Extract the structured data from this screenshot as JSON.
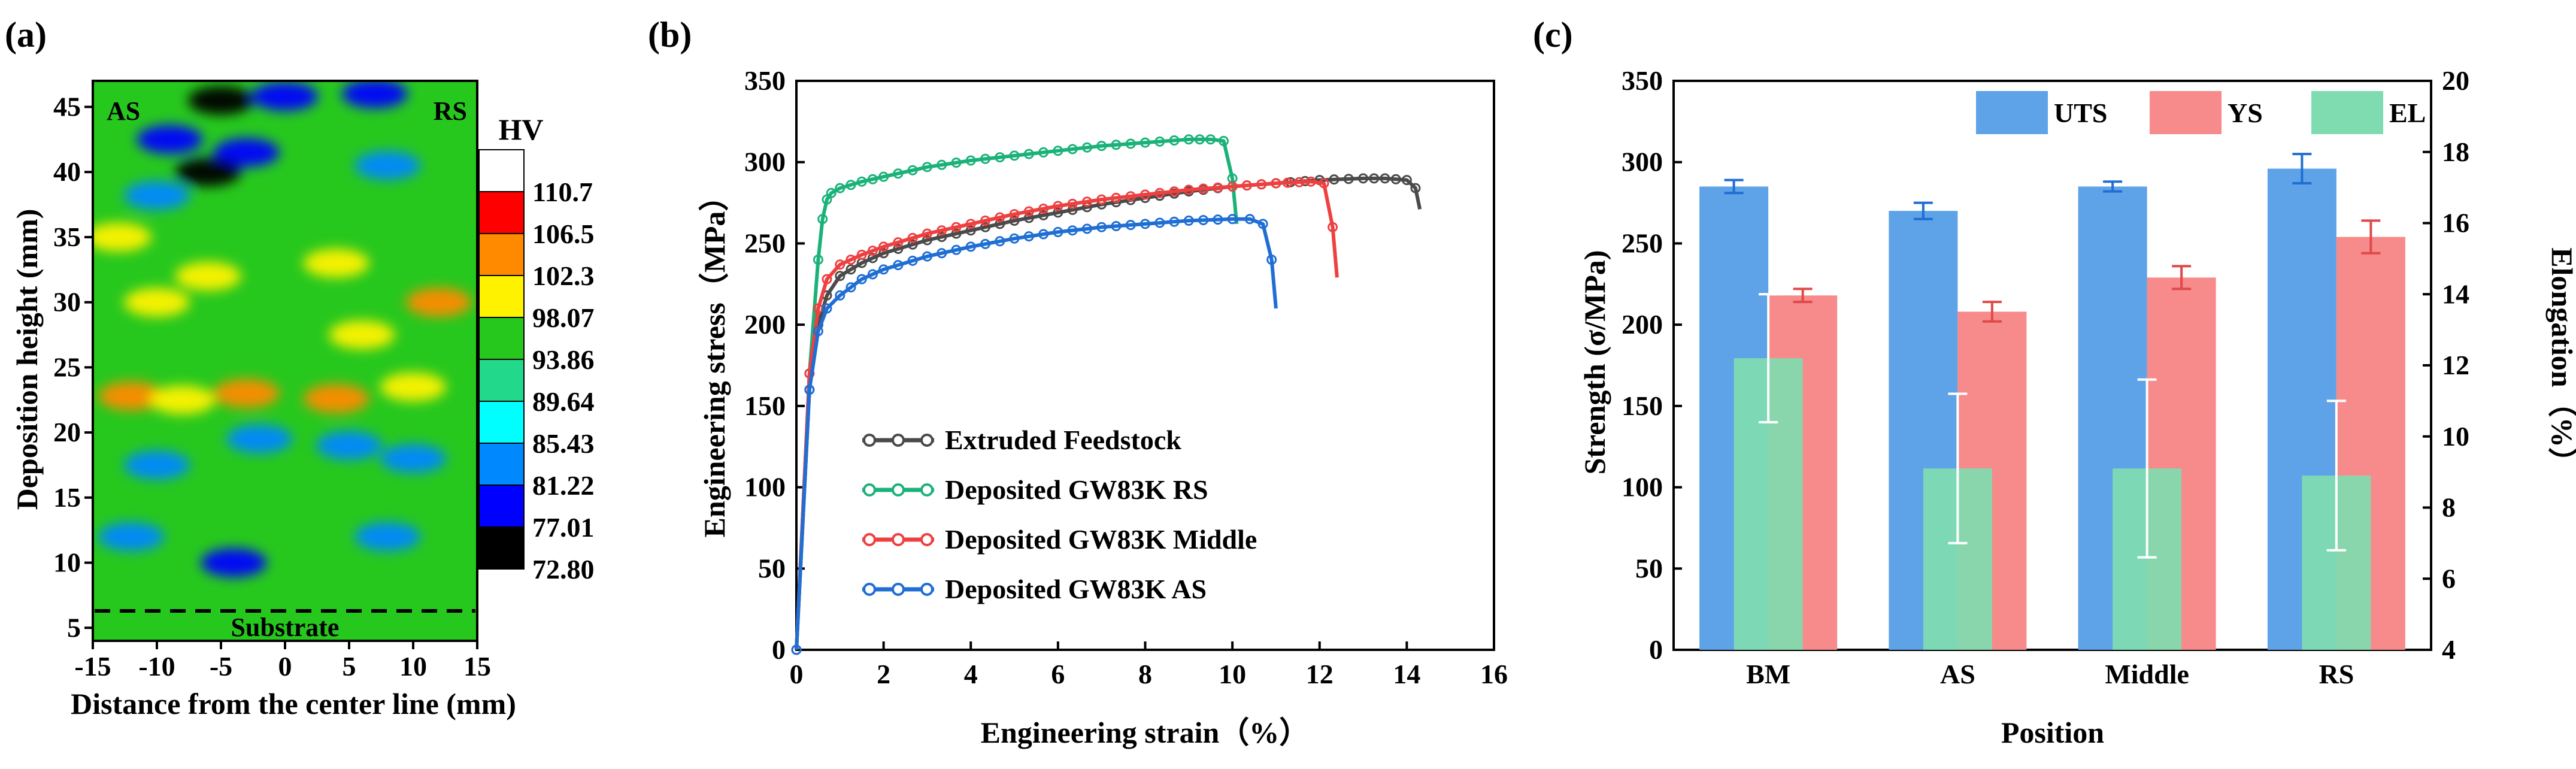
{
  "panels": {
    "a": {
      "label": "(a)",
      "xlabel": "Distance from the center line (mm)",
      "ylabel": "Deposition height (mm)",
      "xticks": [
        "-15",
        "-10",
        "-5",
        "0",
        "5",
        "10",
        "15"
      ],
      "yticks": [
        "5",
        "10",
        "15",
        "20",
        "25",
        "30",
        "35",
        "40",
        "45"
      ],
      "left_tag": "AS",
      "right_tag": "RS",
      "substrate_label": "Substrate",
      "colorbar_title": "HV",
      "colorbar_levels": [
        "110.7",
        "106.5",
        "102.3",
        "98.07",
        "93.86",
        "89.64",
        "85.43",
        "81.22",
        "77.01",
        "72.80"
      ]
    },
    "b": {
      "label": "(b)",
      "xlabel": "Engineering strain（%）",
      "ylabel": "Engineering stress（MPa）",
      "xticks": [
        "0",
        "2",
        "4",
        "6",
        "8",
        "10",
        "12",
        "14",
        "16"
      ],
      "yticks": [
        "0",
        "50",
        "100",
        "150",
        "200",
        "250",
        "300",
        "350"
      ]
    },
    "c": {
      "label": "(c)",
      "xlabel": "Position",
      "ylabel_left": "Strength (σ/MPa)",
      "ylabel_right": "Elongation（%）",
      "yticks_left": [
        "0",
        "50",
        "100",
        "150",
        "200",
        "250",
        "300",
        "350"
      ],
      "yticks_right": [
        "4",
        "6",
        "8",
        "10",
        "12",
        "14",
        "16",
        "18",
        "20"
      ]
    }
  },
  "colors": {
    "extruded": "#4a4a4a",
    "rs": "#1bb27a",
    "middle": "#ee4040",
    "as": "#1f6ed4",
    "uts": "#5ea2e8",
    "ys": "#f78a8a",
    "el": "#7fdcb0",
    "colormap": [
      "#ffffff",
      "#ff0000",
      "#ff8a00",
      "#fff200",
      "#27c81e",
      "#22d88a",
      "#00ffff",
      "#0088ff",
      "#0000ff",
      "#000000"
    ]
  },
  "chart_data": [
    {
      "type": "heatmap",
      "xlabel": "Distance from the center line (mm)",
      "ylabel": "Deposition height (mm)",
      "xlim": [
        -15,
        15
      ],
      "ylim": [
        4,
        47
      ],
      "colorbar_label": "HV",
      "colorbar_range": [
        72.8,
        110.7
      ],
      "colorbar_levels": [
        110.7,
        106.5,
        102.3,
        98.07,
        93.86,
        89.64,
        85.43,
        81.22,
        77.01,
        72.8
      ],
      "substrate_line_y": 6.3,
      "annotations": [
        "AS",
        "RS",
        "Substrate"
      ],
      "features": [
        {
          "x": -5,
          "y": 45.5,
          "hv": 77
        },
        {
          "x": 0,
          "y": 45.8,
          "hv": 79
        },
        {
          "x": 7,
          "y": 46,
          "hv": 80
        },
        {
          "x": -3,
          "y": 41.5,
          "hv": 78
        },
        {
          "x": -6,
          "y": 40,
          "hv": 73
        },
        {
          "x": -9,
          "y": 42.5,
          "hv": 81
        },
        {
          "x": 8,
          "y": 40.5,
          "hv": 83
        },
        {
          "x": -10,
          "y": 38.2,
          "hv": 84
        },
        {
          "x": -13,
          "y": 35,
          "hv": 99
        },
        {
          "x": -6,
          "y": 32,
          "hv": 99
        },
        {
          "x": 4,
          "y": 33,
          "hv": 100
        },
        {
          "x": 12,
          "y": 30,
          "hv": 103
        },
        {
          "x": -10,
          "y": 30,
          "hv": 100
        },
        {
          "x": 6,
          "y": 27.5,
          "hv": 99
        },
        {
          "x": -12,
          "y": 22.8,
          "hv": 106
        },
        {
          "x": -8,
          "y": 22.5,
          "hv": 102
        },
        {
          "x": -3,
          "y": 23,
          "hv": 103
        },
        {
          "x": 4,
          "y": 22.6,
          "hv": 104
        },
        {
          "x": 10,
          "y": 23.5,
          "hv": 101
        },
        {
          "x": -2,
          "y": 19.5,
          "hv": 82
        },
        {
          "x": 5,
          "y": 19,
          "hv": 84
        },
        {
          "x": -10,
          "y": 17.5,
          "hv": 84
        },
        {
          "x": 10,
          "y": 18,
          "hv": 85
        },
        {
          "x": -4,
          "y": 10,
          "hv": 79
        },
        {
          "x": -12,
          "y": 12,
          "hv": 84
        },
        {
          "x": 8,
          "y": 12,
          "hv": 85
        }
      ]
    },
    {
      "type": "line",
      "xlabel": "Engineering strain（%）",
      "ylabel": "Engineering stress（MPa）",
      "xlim": [
        0,
        16
      ],
      "ylim": [
        0,
        350
      ],
      "legend_position": "bottom-right",
      "series": [
        {
          "name": "Extruded  Feedstock",
          "x": [
            0,
            0.3,
            0.5,
            0.7,
            1.0,
            1.5,
            2,
            3,
            4,
            5,
            6,
            7,
            8,
            9,
            10,
            11,
            12,
            13,
            13.5,
            14.0,
            14.2,
            14.3
          ],
          "y": [
            0,
            160,
            200,
            218,
            230,
            238,
            244,
            252,
            258,
            264,
            269,
            274,
            278,
            282,
            285,
            287,
            289,
            290,
            290,
            289,
            284,
            271
          ]
        },
        {
          "name": "Deposited GW83K RS",
          "x": [
            0,
            0.3,
            0.5,
            0.6,
            0.7,
            0.8,
            1.0,
            1.5,
            2,
            3,
            4,
            5,
            6,
            7,
            8,
            9,
            9.5,
            9.8,
            10.0,
            10.1
          ],
          "y": [
            0,
            170,
            240,
            265,
            277,
            281,
            284,
            288,
            291,
            297,
            301,
            304,
            307,
            310,
            312,
            314,
            314,
            313,
            290,
            262
          ]
        },
        {
          "name": "Deposited GW83K Middle",
          "x": [
            0,
            0.3,
            0.5,
            0.7,
            1.0,
            1.5,
            2,
            3,
            4,
            5,
            6,
            7,
            8,
            9,
            10,
            11,
            11.8,
            12.1,
            12.3,
            12.4
          ],
          "y": [
            0,
            170,
            210,
            228,
            237,
            243,
            248,
            256,
            262,
            268,
            273,
            277,
            280,
            283,
            285,
            287,
            288,
            287,
            260,
            229
          ]
        },
        {
          "name": "Deposited GW83K AS",
          "x": [
            0,
            0.3,
            0.5,
            0.7,
            1.0,
            1.5,
            2,
            3,
            4,
            5,
            6,
            7,
            8,
            9,
            10,
            10.4,
            10.7,
            10.9,
            11.0
          ],
          "y": [
            0,
            160,
            196,
            210,
            218,
            228,
            234,
            242,
            248,
            253,
            257,
            260,
            262,
            264,
            265,
            265,
            262,
            240,
            210
          ]
        }
      ]
    },
    {
      "type": "bar",
      "xlabel": "Position",
      "ylabel": "Strength (σ/MPa)",
      "ylabel_right": "Elongation（%）",
      "categories": [
        "BM",
        "AS",
        "Middle",
        "RS"
      ],
      "ylim": [
        0,
        350
      ],
      "ylim_right": [
        4,
        20
      ],
      "legend_position": "top-right",
      "series": [
        {
          "name": "UTS",
          "axis": "left",
          "values": [
            285,
            270,
            285,
            296
          ],
          "errors": [
            4,
            5,
            3,
            9
          ]
        },
        {
          "name": "YS",
          "axis": "left",
          "values": [
            218,
            208,
            229,
            254
          ],
          "errors": [
            4,
            6,
            7,
            10
          ]
        },
        {
          "name": "EL",
          "axis": "right",
          "values": [
            12.2,
            9.1,
            9.1,
            8.9
          ],
          "errors": [
            1.8,
            2.1,
            2.5,
            2.1
          ]
        }
      ]
    }
  ]
}
